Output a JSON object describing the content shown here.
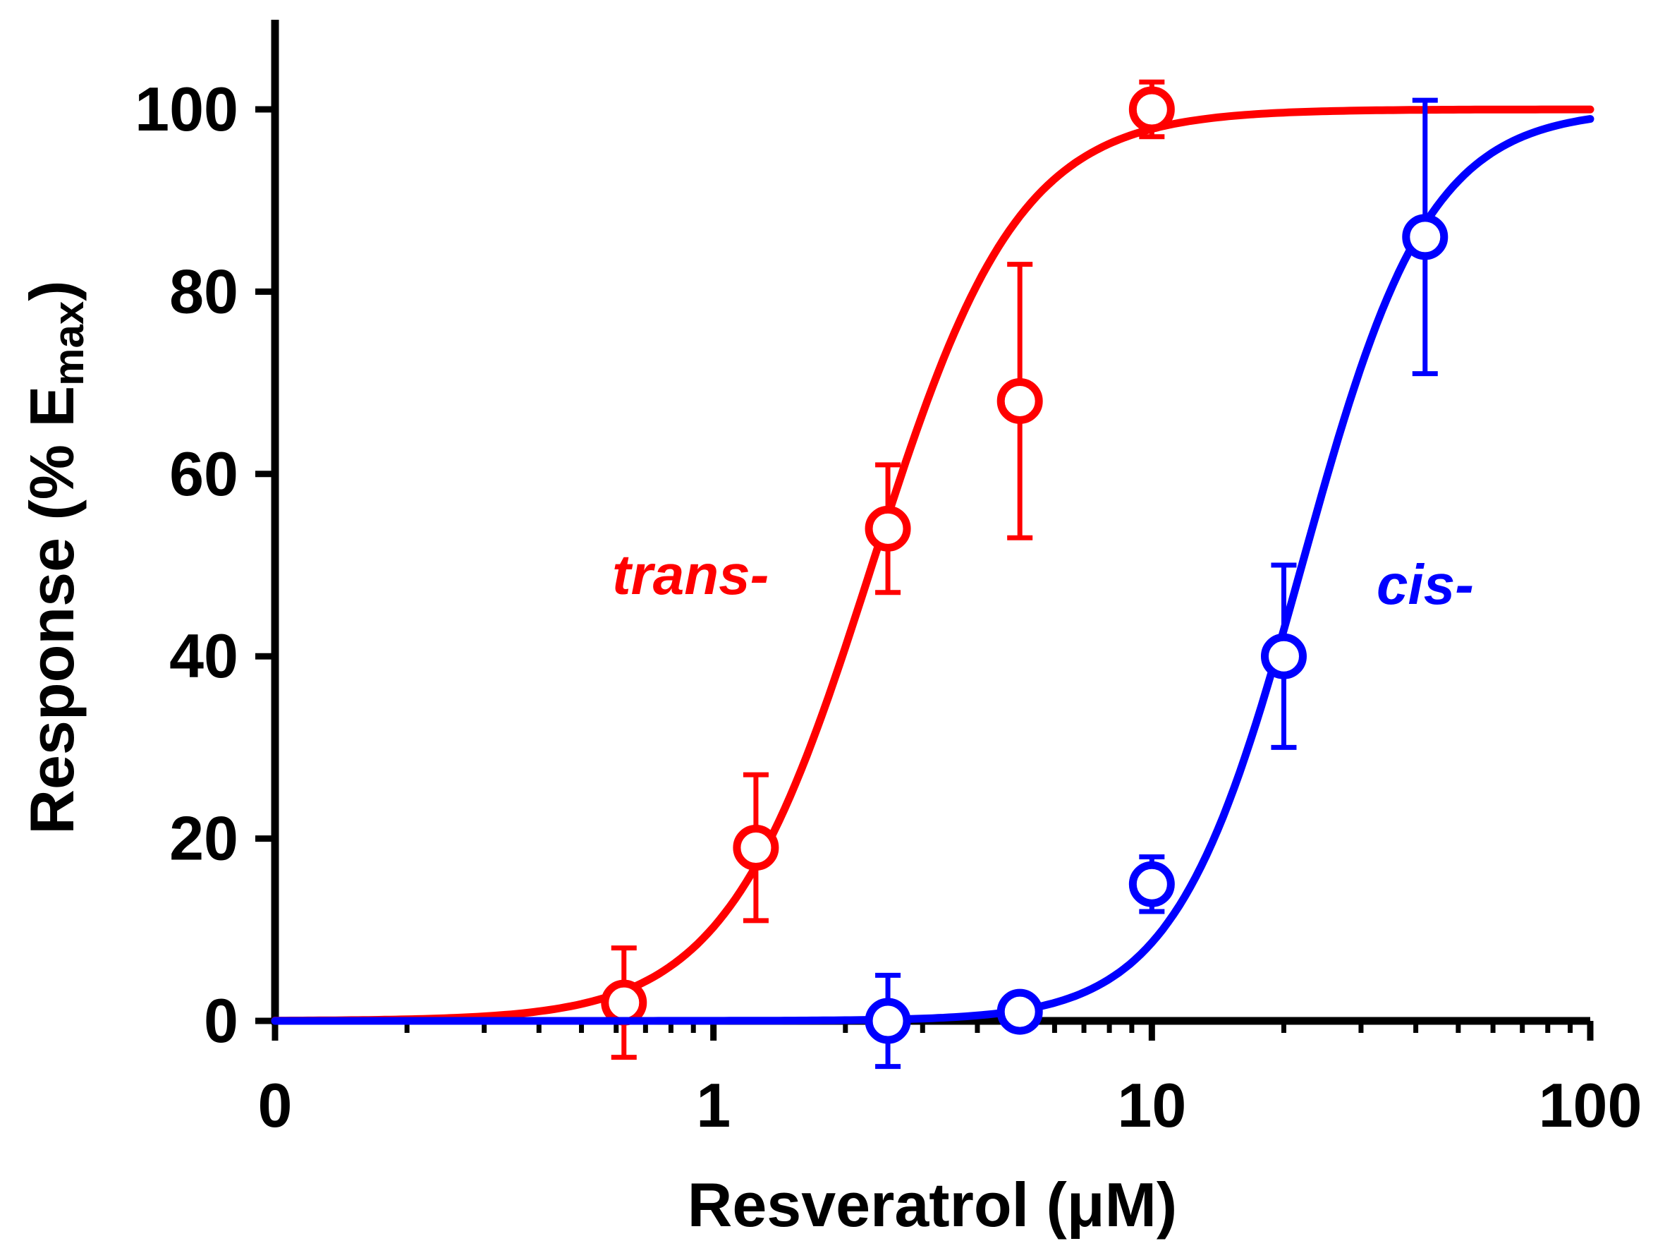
{
  "chart_data": {
    "type": "scatter",
    "title": "",
    "xlabel": "Resveratrol (μM)",
    "ylabel_main": "Response (% E",
    "ylabel_sub": "max",
    "ylabel_close": ")",
    "xscale": "log",
    "xlim": [
      0.1,
      100
    ],
    "ylim": [
      0,
      110
    ],
    "xticks": [
      {
        "value": 0.1,
        "label": "0"
      },
      {
        "value": 1,
        "label": "1"
      },
      {
        "value": 10,
        "label": "10"
      },
      {
        "value": 100,
        "label": "100"
      }
    ],
    "yticks": [
      0,
      20,
      40,
      60,
      80,
      100
    ],
    "series": [
      {
        "name": "trans-",
        "label": "trans-",
        "color": "#ff0000",
        "fit": {
          "model": "hill",
          "top": 100,
          "ec50": 2.3,
          "hill": 2.6
        },
        "points": [
          {
            "x": 0.625,
            "y": 2,
            "err": 6
          },
          {
            "x": 1.25,
            "y": 19,
            "err": 8
          },
          {
            "x": 2.5,
            "y": 54,
            "err": 7
          },
          {
            "x": 5,
            "y": 68,
            "err": 15
          },
          {
            "x": 10,
            "y": 100,
            "err": 3
          }
        ]
      },
      {
        "name": "cis-",
        "label": "cis-",
        "color": "#0000ff",
        "fit": {
          "model": "hill",
          "top": 100,
          "ec50": 22,
          "hill": 3.0
        },
        "points": [
          {
            "x": 2.5,
            "y": 0,
            "err": 5
          },
          {
            "x": 5,
            "y": 1,
            "err": 0
          },
          {
            "x": 10,
            "y": 15,
            "err": 3
          },
          {
            "x": 20,
            "y": 40,
            "err": 10
          },
          {
            "x": 42,
            "y": 86,
            "err": 15
          }
        ]
      }
    ]
  }
}
